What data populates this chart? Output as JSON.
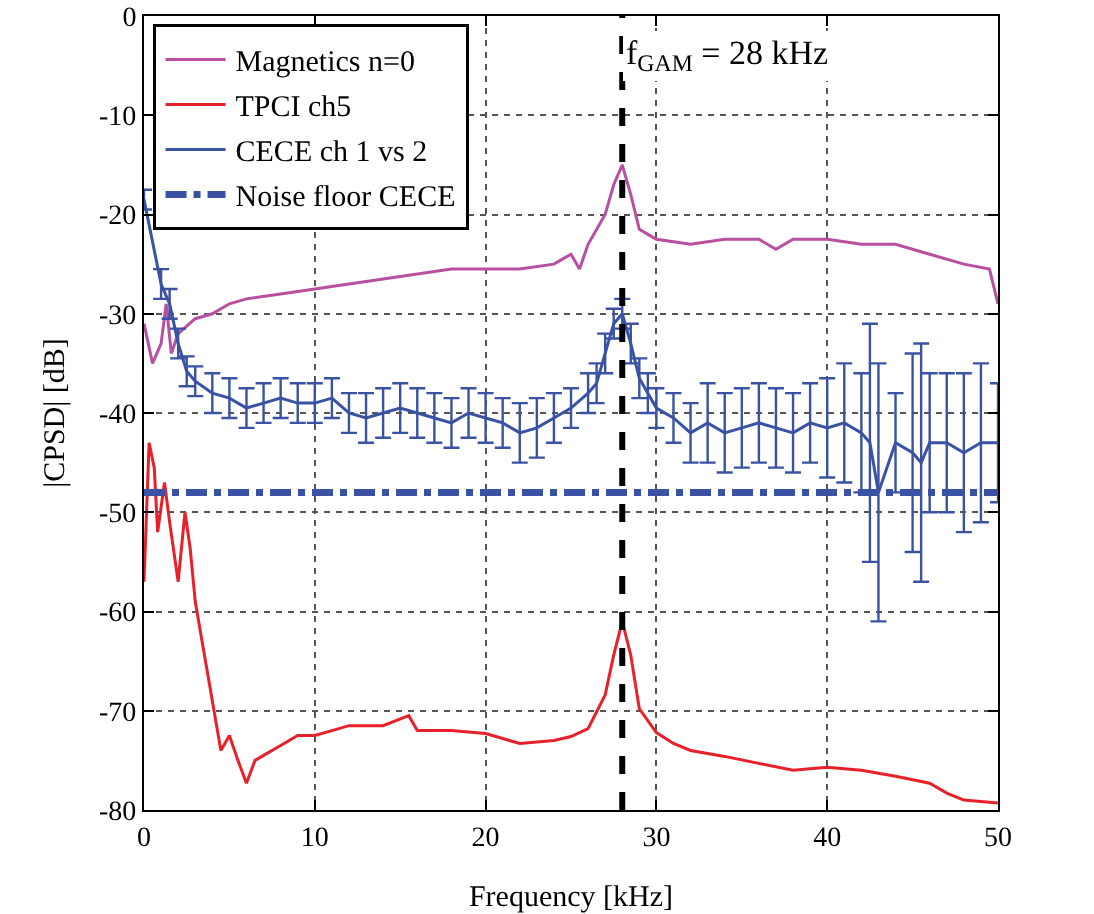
{
  "chart_data": {
    "type": "line",
    "xlabel": "Frequency [kHz]",
    "ylabel": "|CPSD| [dB]",
    "xlim": [
      0,
      50
    ],
    "xticks": [
      0,
      10,
      20,
      30,
      40,
      50
    ],
    "ylim": [
      -80,
      0
    ],
    "yticks": [
      -80,
      -70,
      -60,
      -50,
      -40,
      -30,
      -20,
      -10,
      0
    ],
    "grid": true,
    "legend": "top left",
    "series": [
      {
        "name": "Magnetics n=0",
        "color": "#b84fa0",
        "x": [
          0,
          0.5,
          1,
          1.3,
          1.6,
          2,
          3,
          4,
          5,
          6,
          8,
          10,
          12,
          14,
          16,
          18,
          20,
          22,
          24,
          25,
          25.5,
          26,
          27,
          27.5,
          28,
          28.5,
          29,
          29.5,
          30,
          32,
          34,
          36,
          37,
          38,
          40,
          42,
          44,
          46,
          48,
          49.5,
          50
        ],
        "values": [
          -31,
          -35,
          -33,
          -29,
          -34,
          -32,
          -30.5,
          -30,
          -29,
          -28.5,
          -28,
          -27.5,
          -27,
          -26.5,
          -26,
          -25.5,
          -25.5,
          -25.5,
          -25,
          -24,
          -25.5,
          -23,
          -20,
          -17,
          -15,
          -18,
          -21.5,
          -22,
          -22.5,
          -23,
          -22.5,
          -22.5,
          -23.5,
          -22.5,
          -22.5,
          -23,
          -23,
          -24,
          -25,
          -25.5,
          -29
        ]
      },
      {
        "name": "TPCI ch5",
        "color": "#e8202a",
        "x": [
          0,
          0.3,
          0.6,
          0.8,
          1.2,
          1.5,
          2,
          2.4,
          2.7,
          3,
          3.5,
          4,
          4.5,
          5,
          5.5,
          6,
          6.5,
          7,
          8,
          9,
          10,
          11,
          12,
          14,
          15.5,
          16,
          18,
          20,
          22,
          24,
          25,
          26,
          27,
          27.5,
          28,
          28.5,
          29,
          30,
          31,
          32,
          34,
          36,
          38,
          40,
          42,
          44,
          46,
          47,
          48,
          50
        ],
        "values": [
          -57,
          -43,
          -45.5,
          -52,
          -47,
          -51,
          -57,
          -50,
          -53.6,
          -59,
          -64,
          -69,
          -74,
          -72.5,
          -75,
          -77.3,
          -75,
          -74.5,
          -73.5,
          -72.5,
          -72.5,
          -72,
          -71.5,
          -71.5,
          -70.5,
          -72,
          -72,
          -72.3,
          -73.3,
          -73,
          -72.6,
          -71.8,
          -68.4,
          -64.4,
          -61,
          -64.4,
          -69.8,
          -72.2,
          -73.3,
          -74,
          -74.6,
          -75.3,
          -76,
          -75.7,
          -76,
          -76.6,
          -77.3,
          -78.3,
          -79,
          -79.3
        ]
      },
      {
        "name": "CECE ch 1 vs 2",
        "color": "#3a52a3",
        "x": [
          0,
          1,
          1.5,
          2,
          2.5,
          3,
          4,
          5,
          6,
          7,
          8,
          9,
          10,
          11,
          12,
          13,
          14,
          15,
          16,
          17,
          18,
          19,
          20,
          21,
          22,
          23,
          24,
          25,
          26,
          26.5,
          27,
          27.5,
          28,
          28.5,
          29,
          29.5,
          30,
          31,
          32,
          33,
          34,
          35,
          36,
          37,
          38,
          39,
          40,
          41,
          42,
          42.5,
          43,
          44,
          45,
          45.5,
          46,
          47,
          48,
          49,
          50
        ],
        "values": [
          -18.5,
          -27,
          -29,
          -33,
          -35.8,
          -36.8,
          -38,
          -38.5,
          -39.5,
          -39,
          -38.5,
          -39,
          -39,
          -38.5,
          -40,
          -40.5,
          -40,
          -39.5,
          -40,
          -40.5,
          -41,
          -40,
          -40.5,
          -41,
          -42,
          -41.5,
          -40.5,
          -39.5,
          -38,
          -37,
          -34,
          -31,
          -30,
          -33,
          -36.5,
          -38,
          -39.5,
          -40.5,
          -42,
          -41,
          -42,
          -41.5,
          -41,
          -41.5,
          -42,
          -41,
          -41.5,
          -41,
          -42,
          -43,
          -48,
          -43,
          -44,
          -45,
          -43,
          -43,
          -44,
          -43,
          -43
        ],
        "errors": [
          1,
          1.5,
          1.5,
          1.5,
          1.5,
          1.5,
          2,
          2,
          2,
          2,
          2,
          2,
          2,
          2,
          2,
          2.5,
          2.5,
          2.5,
          2.5,
          2.5,
          2.5,
          2.5,
          2.5,
          2.5,
          3,
          3,
          2.5,
          2,
          2,
          2,
          2,
          1.5,
          1.5,
          2,
          2,
          2,
          2,
          2.5,
          3,
          4,
          4,
          4,
          4,
          4,
          4,
          4,
          5,
          6,
          6,
          12,
          13,
          5,
          10,
          12,
          7,
          7,
          8,
          8,
          6
        ]
      },
      {
        "name": "Noise floor CECE",
        "color": "#3a52a3",
        "line_style": "dashdot",
        "x": [
          0,
          50
        ],
        "values": [
          -48,
          -48
        ]
      }
    ],
    "ref_lines": [
      {
        "axis": "x",
        "value": 28,
        "label": "f$_{GAM}$ = 28 kHz",
        "color": "#000000",
        "line_style": "dashed"
      }
    ]
  }
}
